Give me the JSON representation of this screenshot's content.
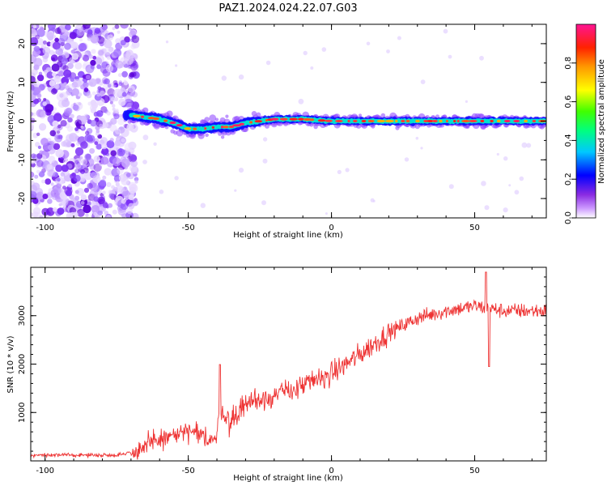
{
  "title": "PAZ1.2024.024.22.07.G03",
  "chart_data": [
    {
      "type": "heatmap",
      "xlabel": "Height of straight line (km)",
      "ylabel": "Frequency (Hz)",
      "xlim": [
        -105,
        75
      ],
      "ylim": [
        -25,
        25
      ],
      "xticks": [
        -100,
        -50,
        0,
        50
      ],
      "yticks": [
        -20,
        -10,
        0,
        10,
        20
      ],
      "colorbar": {
        "label": "Normalized spectral amplitude",
        "range": [
          0,
          1
        ],
        "ticks": [
          0.0,
          0.2,
          0.4,
          0.6,
          0.8
        ],
        "colormap": [
          "#ffffff",
          "#8a2be2",
          "#0000ff",
          "#00ffff",
          "#00ff00",
          "#ffff00",
          "#ff8000",
          "#ff0000",
          "#ff1493"
        ]
      },
      "ridge": {
        "description_points_x": [
          -70,
          -65,
          -60,
          -55,
          -50,
          -45,
          -40,
          -35,
          -30,
          -25,
          -20,
          -10,
          0,
          10,
          20,
          30,
          40,
          50,
          60,
          75
        ],
        "frequency_hz": [
          1.5,
          1.0,
          0.5,
          -0.5,
          -2.0,
          -2.0,
          -1.5,
          -1.5,
          -0.5,
          0.0,
          0.5,
          0.5,
          0.0,
          0.0,
          0.0,
          0.0,
          0.0,
          0.0,
          0.0,
          0.0
        ]
      },
      "noise_region_x": [
        -105,
        -70
      ]
    },
    {
      "type": "line",
      "xlabel": "Height of straight line (km)",
      "ylabel": "SNR (10 * v/v)",
      "xlim": [
        -105,
        75
      ],
      "ylim": [
        0,
        4000
      ],
      "xticks": [
        -100,
        -50,
        0,
        50
      ],
      "yticks": [
        1000,
        2000,
        3000
      ],
      "color": "#ee3333",
      "trend": {
        "x": [
          -105,
          -75,
          -68,
          -60,
          -50,
          -45,
          -40,
          -39,
          -37,
          -35,
          -30,
          -20,
          -10,
          0,
          10,
          20,
          30,
          40,
          50,
          55,
          60,
          75
        ],
        "y": [
          120,
          120,
          200,
          450,
          600,
          500,
          450,
          1200,
          900,
          800,
          1200,
          1350,
          1550,
          1800,
          2200,
          2650,
          2950,
          3100,
          3200,
          3150,
          3100,
          3100
        ]
      },
      "spikes": [
        {
          "x": 54,
          "y": 3900
        },
        {
          "x": 55,
          "y": 1950
        },
        {
          "x": -39,
          "y": 1990
        }
      ]
    }
  ]
}
